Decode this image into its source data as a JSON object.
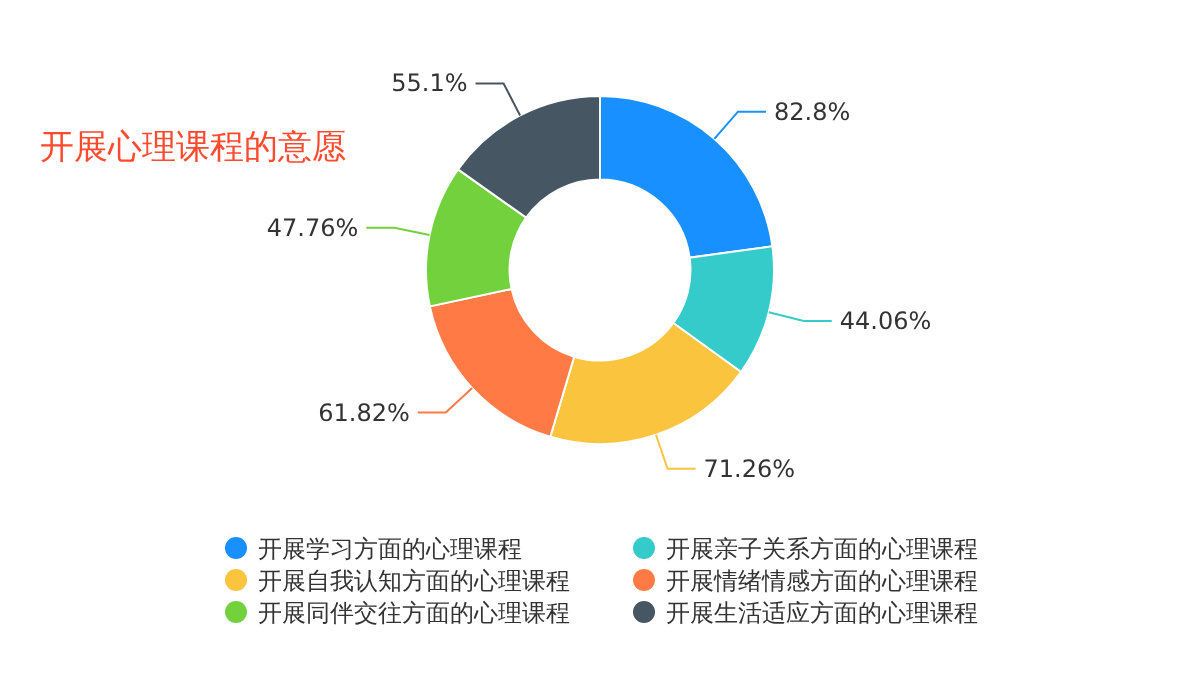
{
  "chart_data": {
    "type": "donut",
    "title": "开展心理课程的意愿",
    "categories": [
      "开展学习方面的心理课程",
      "开展亲子关系方面的心理课程",
      "开展自我认知方面的心理课程",
      "开展情绪情感方面的心理课程",
      "开展同伴交往方面的心理课程",
      "开展生活适应方面的心理课程"
    ],
    "values": [
      82.8,
      44.06,
      71.26,
      61.82,
      47.76,
      55.1
    ],
    "value_labels": [
      "82.8%",
      "44.06%",
      "71.26%",
      "61.82%",
      "47.76%",
      "55.1%"
    ],
    "colors": [
      "#1890ff",
      "#36cbcb",
      "#fbc43f",
      "#ff7a45",
      "#73d13d",
      "#465763"
    ],
    "legend": "bottom"
  }
}
